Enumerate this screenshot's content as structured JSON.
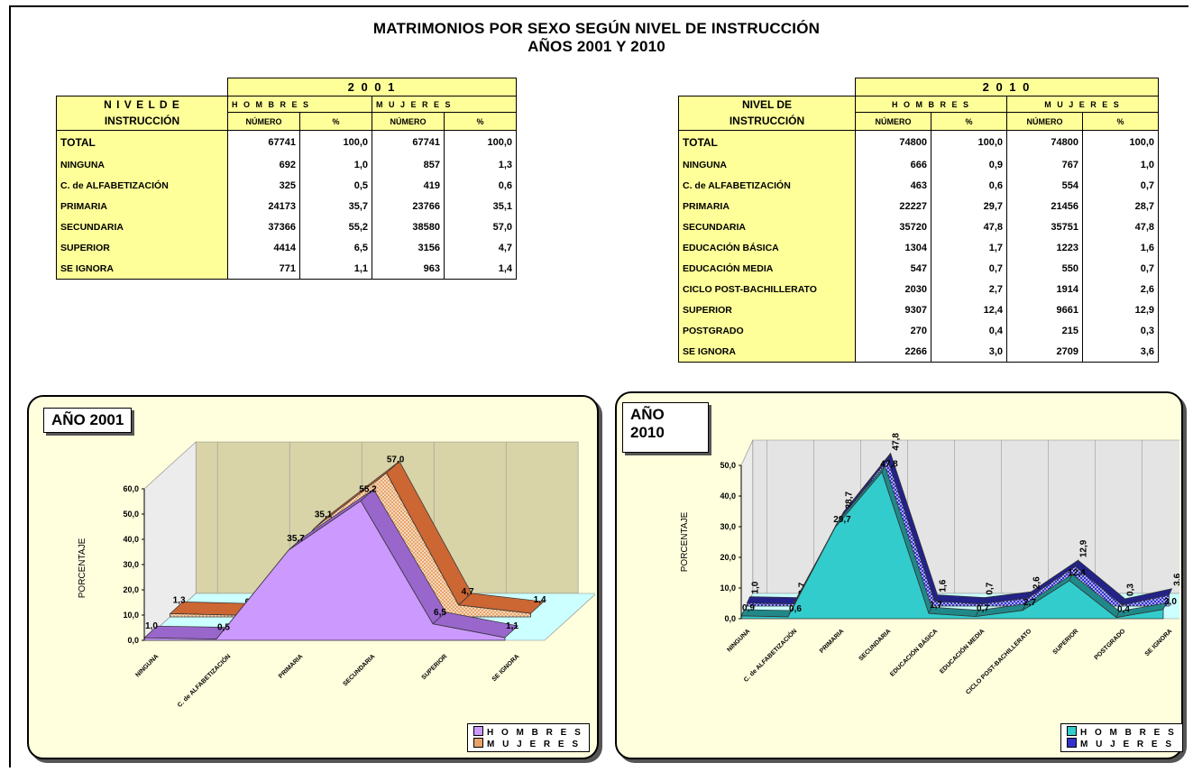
{
  "title": "MATRIMONIOS POR SEXO SEGÚN NIVEL DE INSTRUCCIÓN",
  "subtitle": "AÑOS 2001 Y  2010",
  "table_2001": {
    "year": "2 0 0 1",
    "nivel_line1": "N I V E L   D E",
    "nivel_line2": "INSTRUCCIÓN",
    "hombres": "H O M B R E S",
    "mujeres": "M U J E R E S",
    "numero": "NÚMERO",
    "pct": "%",
    "rows": [
      {
        "label": "TOTAL",
        "h_n": "67741",
        "h_p": "100,0",
        "m_n": "67741",
        "m_p": "100,0"
      },
      {
        "label": "NINGUNA",
        "h_n": "692",
        "h_p": "1,0",
        "m_n": "857",
        "m_p": "1,3"
      },
      {
        "label": "C. de ALFABETIZACIÓN",
        "h_n": "325",
        "h_p": "0,5",
        "m_n": "419",
        "m_p": "0,6"
      },
      {
        "label": "PRIMARIA",
        "h_n": "24173",
        "h_p": "35,7",
        "m_n": "23766",
        "m_p": "35,1"
      },
      {
        "label": "SECUNDARIA",
        "h_n": "37366",
        "h_p": "55,2",
        "m_n": "38580",
        "m_p": "57,0"
      },
      {
        "label": "SUPERIOR",
        "h_n": "4414",
        "h_p": "6,5",
        "m_n": "3156",
        "m_p": "4,7"
      },
      {
        "label": "SE IGNORA",
        "h_n": "771",
        "h_p": "1,1",
        "m_n": "963",
        "m_p": "1,4"
      }
    ]
  },
  "table_2010": {
    "year": "2 0 1 0",
    "nivel_line1": "NIVEL DE",
    "nivel_line2": "INSTRUCCIÓN",
    "hombres": "H O M B R E S",
    "mujeres": "M U J E R E S",
    "numero": "NÚMERO",
    "pct": "%",
    "rows": [
      {
        "label": "TOTAL",
        "h_n": "74800",
        "h_p": "100,0",
        "m_n": "74800",
        "m_p": "100,0"
      },
      {
        "label": "NINGUNA",
        "h_n": "666",
        "h_p": "0,9",
        "m_n": "767",
        "m_p": "1,0"
      },
      {
        "label": "C. de ALFABETIZACIÓN",
        "h_n": "463",
        "h_p": "0,6",
        "m_n": "554",
        "m_p": "0,7"
      },
      {
        "label": "PRIMARIA",
        "h_n": "22227",
        "h_p": "29,7",
        "m_n": "21456",
        "m_p": "28,7"
      },
      {
        "label": "SECUNDARIA",
        "h_n": "35720",
        "h_p": "47,8",
        "m_n": "35751",
        "m_p": "47,8"
      },
      {
        "label": "EDUCACIÓN BÁSICA",
        "h_n": "1304",
        "h_p": "1,7",
        "m_n": "1223",
        "m_p": "1,6"
      },
      {
        "label": "EDUCACIÓN MEDIA",
        "h_n": "547",
        "h_p": "0,7",
        "m_n": "550",
        "m_p": "0,7"
      },
      {
        "label": "CICLO POST-BACHILLERATO",
        "h_n": "2030",
        "h_p": "2,7",
        "m_n": "1914",
        "m_p": "2,6"
      },
      {
        "label": "SUPERIOR",
        "h_n": "9307",
        "h_p": "12,4",
        "m_n": "9661",
        "m_p": "12,9"
      },
      {
        "label": "POSTGRADO",
        "h_n": "270",
        "h_p": "0,4",
        "m_n": "215",
        "m_p": "0,3"
      },
      {
        "label": "SE IGNORA",
        "h_n": "2266",
        "h_p": "3,0",
        "m_n": "2709",
        "m_p": "3,6"
      }
    ]
  },
  "chart_data": [
    {
      "type": "area",
      "title": "AÑO 2001",
      "ylabel": "PORCENTAJE",
      "ylim": [
        0,
        60
      ],
      "yticks": [
        "0,0",
        "10,0",
        "20,0",
        "30,0",
        "40,0",
        "50,0",
        "60,0"
      ],
      "categories": [
        "NINGUNA",
        "C. de ALFABETIZACIÓN",
        "PRIMARIA",
        "SECUNDARIA",
        "SUPERIOR",
        "SE IGNORA"
      ],
      "series": [
        {
          "name": "H O M B R E S",
          "values": [
            1.0,
            0.5,
            35.7,
            55.2,
            6.5,
            1.1
          ],
          "labels": [
            "1,0",
            "0,5",
            "35,7",
            "55,2",
            "6,5",
            "1,1"
          ]
        },
        {
          "name": "M U J E R E S",
          "values": [
            1.3,
            0.6,
            35.1,
            57.0,
            4.7,
            1.4
          ],
          "labels": [
            "1,3",
            "0,6",
            "35,1",
            "57,0",
            "4,7",
            "1,4"
          ]
        }
      ],
      "colors": {
        "hombres": "#cc99ff",
        "mujeres": "#e8a468",
        "floor": "#ccffff",
        "wall": "#d8d4a8"
      },
      "legend": "bottom-right"
    },
    {
      "type": "area",
      "title": "AÑO 2010",
      "ylabel": "PORCENTAJE",
      "ylim": [
        0,
        50
      ],
      "yticks": [
        "0,0",
        "10,0",
        "20,0",
        "30,0",
        "40,0",
        "50,0"
      ],
      "categories": [
        "NINGUNA",
        "C. de ALFABETIZACIÓN",
        "PRIMARIA",
        "SECUNDARIA",
        "EDUCACIÓN BÁSICA",
        "EDUCACIÓN MEDIA",
        "CICLO POST-BACHILLERATO",
        "SUPERIOR",
        "POSTGRADO",
        "SE IGNORA"
      ],
      "series": [
        {
          "name": "H O M B R E S",
          "values": [
            0.9,
            0.6,
            29.7,
            47.8,
            1.7,
            0.7,
            2.7,
            12.4,
            0.4,
            3.0
          ],
          "labels": [
            "0,9",
            "0,6",
            "29,7",
            "47,8",
            "1,7",
            "0,7",
            "2,7",
            "12,4",
            "0,4",
            "3,0"
          ]
        },
        {
          "name": "M U J E R E S",
          "values": [
            1.0,
            0.7,
            28.7,
            47.8,
            1.6,
            0.7,
            2.6,
            12.9,
            0.3,
            3.6
          ],
          "labels": [
            "1,0",
            "0,7",
            "28,7",
            "47,8",
            "1,6",
            "0,7",
            "2,6",
            "12,9",
            "0,3",
            "3,6"
          ]
        }
      ],
      "colors": {
        "hombres": "#33cccc",
        "mujeres": "#3333cc",
        "wall": "#e4e4e4"
      },
      "legend": "bottom-right"
    }
  ]
}
